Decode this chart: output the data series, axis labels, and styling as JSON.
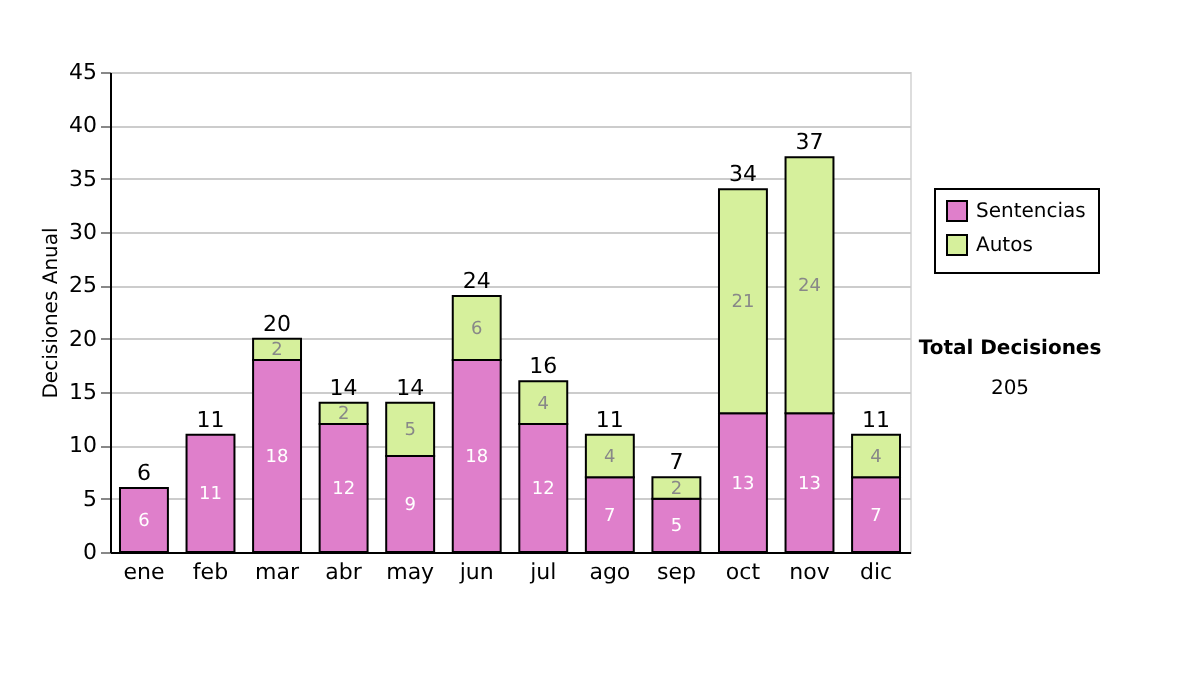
{
  "chart_data": {
    "type": "bar",
    "stacked": true,
    "ylabel": "Decisiones Anual",
    "categories": [
      "ene",
      "feb",
      "mar",
      "abr",
      "may",
      "jun",
      "jul",
      "ago",
      "sep",
      "oct",
      "nov",
      "dic"
    ],
    "series": [
      {
        "name": "Sentencias",
        "color": "#df7fcb",
        "values": [
          6,
          11,
          18,
          12,
          9,
          18,
          12,
          7,
          5,
          13,
          13,
          7
        ]
      },
      {
        "name": "Autos",
        "color": "#d6f09c",
        "values": [
          null,
          null,
          2,
          2,
          5,
          6,
          4,
          4,
          2,
          21,
          24,
          4
        ]
      }
    ],
    "totals": [
      "6",
      "11",
      "20",
      "14",
      "14",
      "24",
      "16",
      "11",
      "7",
      "34",
      "37",
      "11"
    ],
    "data_labels": true,
    "ylim": [
      0,
      45
    ],
    "yticks": [
      0,
      5,
      10,
      15,
      20,
      25,
      30,
      35,
      40,
      45
    ],
    "grid": "y",
    "legend": "right",
    "annotations": [
      "Total Decisiones",
      "205"
    ]
  }
}
